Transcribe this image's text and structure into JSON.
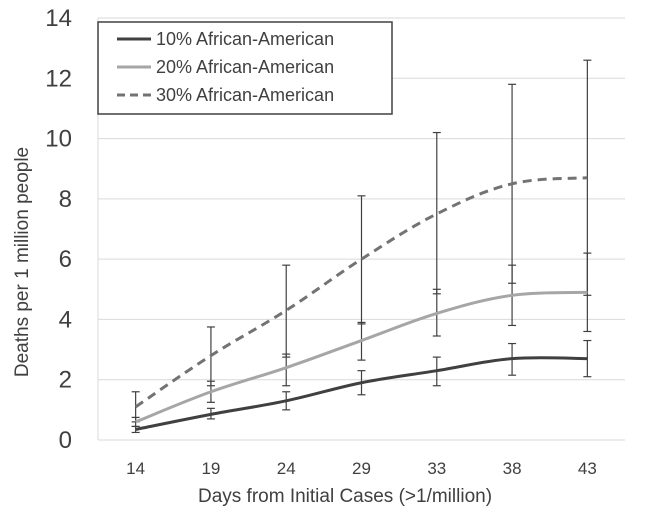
{
  "chart_data": {
    "type": "line",
    "title": "",
    "xlabel": "Days from Initial Cases (>1/million)",
    "ylabel": "Deaths per 1 million people",
    "categories": [
      "14",
      "19",
      "24",
      "29",
      "33",
      "38",
      "43"
    ],
    "ylim": [
      0,
      14
    ],
    "yticks": [
      0,
      2,
      4,
      6,
      8,
      10,
      12,
      14
    ],
    "grid": "horizontal",
    "legend_position": "top-left",
    "series": [
      {
        "name": "10% African-American",
        "style": "solid",
        "color": "#404040",
        "values": [
          0.35,
          0.85,
          1.3,
          1.9,
          2.3,
          2.7,
          2.7
        ],
        "error_low": [
          0.25,
          0.7,
          1.0,
          1.5,
          1.8,
          2.15,
          2.1
        ],
        "error_high": [
          0.45,
          1.05,
          1.6,
          2.3,
          2.75,
          3.2,
          3.3
        ]
      },
      {
        "name": "20% African-American",
        "style": "solid",
        "color": "#a6a6a6",
        "values": [
          0.6,
          1.6,
          2.4,
          3.3,
          4.2,
          4.8,
          4.9
        ],
        "error_low": [
          0.45,
          1.25,
          1.8,
          2.65,
          3.45,
          3.8,
          3.6
        ],
        "error_high": [
          0.75,
          1.95,
          2.85,
          3.9,
          5.0,
          5.8,
          6.2
        ]
      },
      {
        "name": "30% African-American",
        "style": "dashed",
        "color": "#737373",
        "values": [
          1.1,
          2.8,
          4.3,
          6.0,
          7.5,
          8.5,
          8.7
        ],
        "error_low": [
          0.6,
          1.8,
          2.75,
          3.85,
          4.85,
          5.2,
          4.8
        ],
        "error_high": [
          1.6,
          3.75,
          5.8,
          8.1,
          10.2,
          11.8,
          12.6
        ]
      }
    ]
  }
}
